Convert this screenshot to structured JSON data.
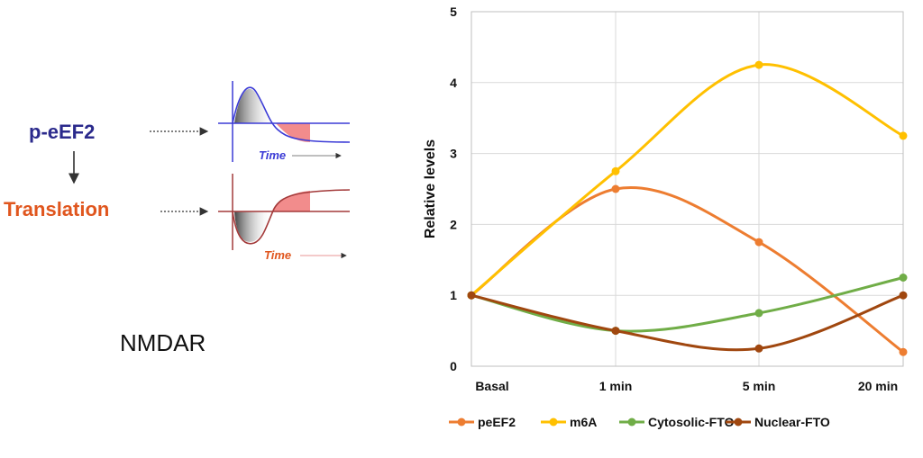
{
  "schematic": {
    "peef2_label": "p-eEF2",
    "translation_label": "Translation",
    "time_label_top": "Time",
    "time_label_bottom": "Time",
    "caption": "NMDAR",
    "colors": {
      "peef2": "#2b2a8c",
      "translation": "#e0561e",
      "curve_top": "#3b3bd6",
      "curve_bottom": "#a33a3a",
      "shade": "#f07878"
    }
  },
  "chart_data": {
    "type": "line",
    "categories": [
      "Basal",
      "1 min",
      "5 min",
      "20 min"
    ],
    "ylabel": "Relative levels",
    "xlabel": "",
    "ylim": [
      0,
      5
    ],
    "yticks": [
      "0",
      "1",
      "2",
      "3",
      "4",
      "5"
    ],
    "grid": true,
    "legend_position": "bottom",
    "smooth": true,
    "series": [
      {
        "name": "peEF2",
        "color": "#ed7d31",
        "values": [
          1,
          2.5,
          1.75,
          0.2
        ]
      },
      {
        "name": "m6A",
        "color": "#ffc000",
        "values": [
          1,
          2.75,
          4.25,
          3.25
        ]
      },
      {
        "name": "Cytosolic-FTO",
        "color": "#70ad47",
        "values": [
          1,
          0.5,
          0.75,
          1.25
        ]
      },
      {
        "name": "Nuclear-FTO",
        "color": "#a0470f",
        "values": [
          1,
          0.5,
          0.25,
          1.0
        ]
      }
    ]
  }
}
